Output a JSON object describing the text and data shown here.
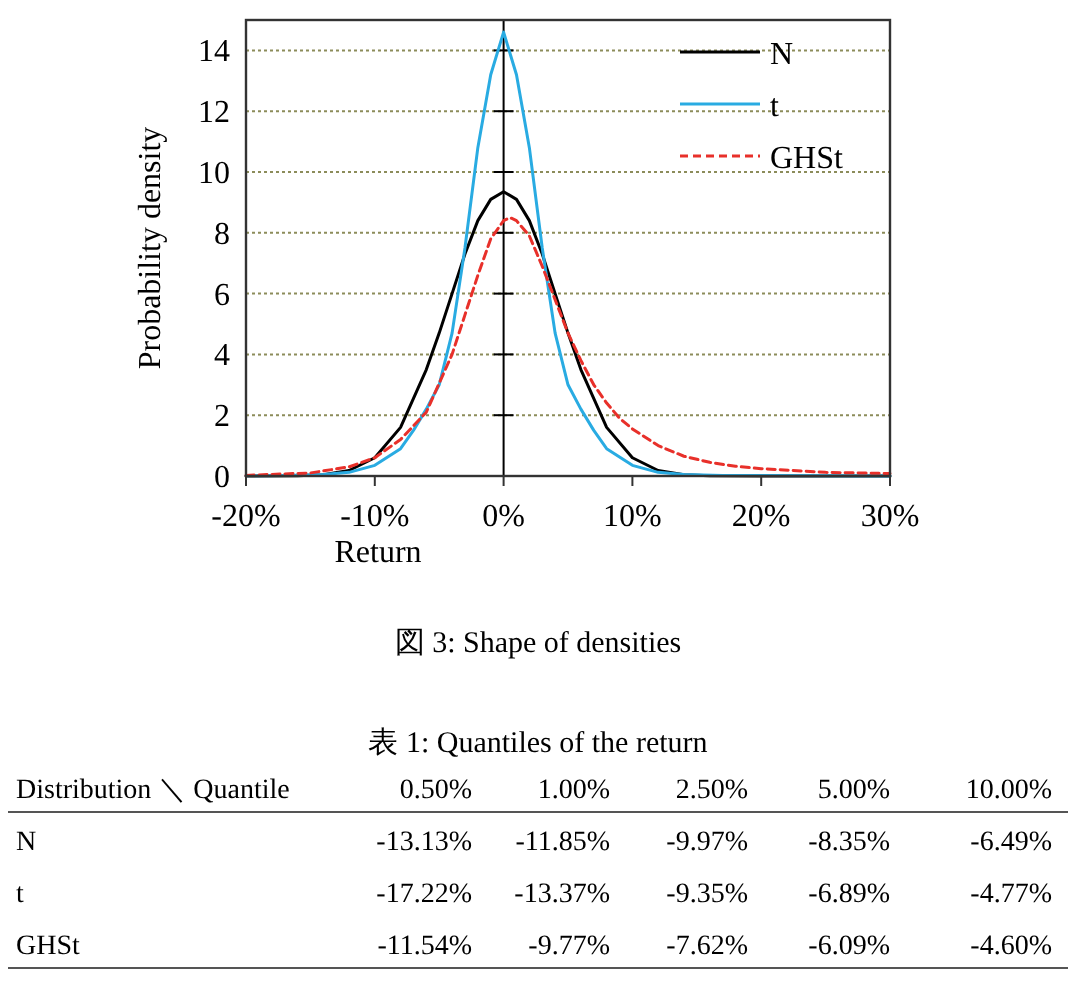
{
  "chart_data": {
    "type": "line",
    "xlabel": "Return",
    "ylabel": "Probability density",
    "xlim": [
      -20,
      30
    ],
    "xticks": [
      {
        "value": -20,
        "label": "-20%"
      },
      {
        "value": -10,
        "label": "-10%"
      },
      {
        "value": 0,
        "label": "0%"
      },
      {
        "value": 10,
        "label": "10%"
      },
      {
        "value": 20,
        "label": "20%"
      },
      {
        "value": 30,
        "label": "30%"
      }
    ],
    "ylim": [
      0,
      15
    ],
    "yticks": [
      0,
      2,
      4,
      6,
      8,
      10,
      12,
      14
    ],
    "grid": "y",
    "legend": "top right",
    "ref_lines": [
      {
        "axis": "x",
        "value": 0,
        "color": "#000000"
      }
    ],
    "series": [
      {
        "name": "N",
        "color": "#000000",
        "x": [
          -20,
          -16,
          -14,
          -12,
          -10,
          -8,
          -6,
          -5,
          -4,
          -3,
          -2,
          -1,
          0,
          1,
          2,
          3,
          4,
          5,
          6,
          8,
          10,
          12,
          14,
          16,
          20,
          30
        ],
        "values": [
          0,
          0.01,
          0.04,
          0.18,
          0.6,
          1.6,
          3.5,
          4.7,
          6.0,
          7.3,
          8.4,
          9.1,
          9.35,
          9.1,
          8.4,
          7.3,
          6.0,
          4.7,
          3.5,
          1.6,
          0.6,
          0.18,
          0.04,
          0.01,
          0,
          0
        ]
      },
      {
        "name": "t",
        "color": "#29abe2",
        "x": [
          -20,
          -17,
          -14,
          -12,
          -10,
          -8,
          -7,
          -6,
          -5,
          -4,
          -3,
          -2,
          -1,
          0,
          1,
          2,
          3,
          4,
          5,
          6,
          7,
          8,
          10,
          12,
          14,
          17,
          30
        ],
        "values": [
          0.01,
          0.02,
          0.05,
          0.12,
          0.35,
          0.9,
          1.5,
          2.2,
          3.0,
          4.7,
          7.5,
          10.8,
          13.2,
          14.6,
          13.2,
          10.8,
          7.5,
          4.7,
          3.0,
          2.2,
          1.5,
          0.9,
          0.35,
          0.12,
          0.05,
          0.02,
          0
        ]
      },
      {
        "name": "GHSt",
        "color": "#e8302a",
        "line_style": "dashed",
        "x": [
          -20,
          -15,
          -12,
          -10,
          -8,
          -6,
          -4,
          -3,
          -2,
          -1,
          0,
          0.5,
          1,
          2,
          3,
          4,
          5,
          6,
          7,
          8,
          9,
          10,
          12,
          14,
          16,
          18,
          20,
          25,
          30
        ],
        "values": [
          0.02,
          0.1,
          0.3,
          0.6,
          1.2,
          2.1,
          4.0,
          5.3,
          6.6,
          7.8,
          8.4,
          8.5,
          8.4,
          7.9,
          6.9,
          5.8,
          4.7,
          3.8,
          3.0,
          2.4,
          1.9,
          1.55,
          1.0,
          0.65,
          0.45,
          0.32,
          0.24,
          0.12,
          0.08
        ]
      }
    ],
    "annotations": [
      "図 3: Shape of densities",
      "表 1: Quantiles of the return",
      "Distribution ＼ Quantile",
      "0.50%",
      "1.00%",
      "2.50%",
      "5.00%",
      "10.00%",
      "N",
      "-13.13%",
      "-11.85%",
      "-9.97%",
      "-8.35%",
      "-6.49%",
      "t",
      "-17.22%",
      "-13.37%",
      "-9.35%",
      "-6.89%",
      "-4.77%",
      "GHSt",
      "-11.54%",
      "-9.77%",
      "-7.62%",
      "-6.09%",
      "-4.60%"
    ]
  }
}
